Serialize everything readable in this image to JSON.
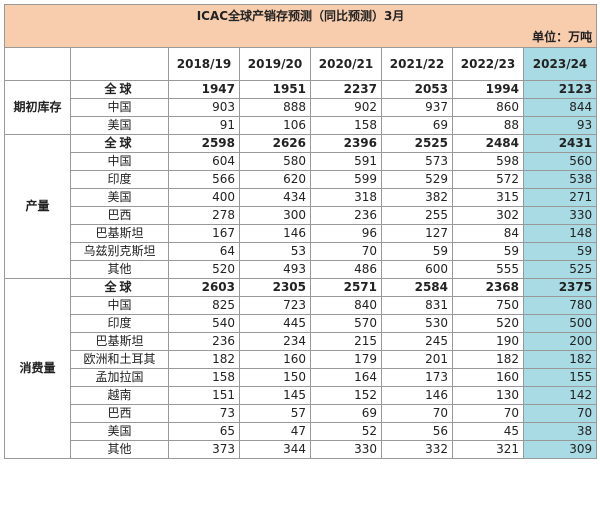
{
  "title": "ICAC全球产销存预测（同比预测）3月",
  "unit": "单位：万吨",
  "years": [
    "2018/19",
    "2019/20",
    "2020/21",
    "2021/22",
    "2022/23",
    "2023/24"
  ],
  "groups": [
    {
      "label": "期初库存",
      "rows": [
        {
          "name": "全球",
          "total": true,
          "values": [
            "1947",
            "1951",
            "2237",
            "2053",
            "1994",
            "2123"
          ]
        },
        {
          "name": "中国",
          "total": false,
          "values": [
            "903",
            "888",
            "902",
            "937",
            "860",
            "844"
          ]
        },
        {
          "name": "美国",
          "total": false,
          "values": [
            "91",
            "106",
            "158",
            "69",
            "88",
            "93"
          ]
        }
      ]
    },
    {
      "label": "产量",
      "rows": [
        {
          "name": "全球",
          "total": true,
          "values": [
            "2598",
            "2626",
            "2396",
            "2525",
            "2484",
            "2431"
          ]
        },
        {
          "name": "中国",
          "total": false,
          "values": [
            "604",
            "580",
            "591",
            "573",
            "598",
            "560"
          ]
        },
        {
          "name": "印度",
          "total": false,
          "values": [
            "566",
            "620",
            "599",
            "529",
            "572",
            "538"
          ]
        },
        {
          "name": "美国",
          "total": false,
          "values": [
            "400",
            "434",
            "318",
            "382",
            "315",
            "271"
          ]
        },
        {
          "name": "巴西",
          "total": false,
          "values": [
            "278",
            "300",
            "236",
            "255",
            "302",
            "330"
          ]
        },
        {
          "name": "巴基斯坦",
          "total": false,
          "values": [
            "167",
            "146",
            "96",
            "127",
            "84",
            "148"
          ]
        },
        {
          "name": "乌兹别克斯坦",
          "total": false,
          "values": [
            "64",
            "53",
            "70",
            "59",
            "59",
            "59"
          ]
        },
        {
          "name": "其他",
          "total": false,
          "values": [
            "520",
            "493",
            "486",
            "600",
            "555",
            "525"
          ]
        }
      ]
    },
    {
      "label": "消费量",
      "rows": [
        {
          "name": "全球",
          "total": true,
          "values": [
            "2603",
            "2305",
            "2571",
            "2584",
            "2368",
            "2375"
          ]
        },
        {
          "name": "中国",
          "total": false,
          "values": [
            "825",
            "723",
            "840",
            "831",
            "750",
            "780"
          ]
        },
        {
          "name": "印度",
          "total": false,
          "values": [
            "540",
            "445",
            "570",
            "530",
            "520",
            "500"
          ]
        },
        {
          "name": "巴基斯坦",
          "total": false,
          "values": [
            "236",
            "234",
            "215",
            "245",
            "190",
            "200"
          ]
        },
        {
          "name": "欧洲和土耳其",
          "total": false,
          "values": [
            "182",
            "160",
            "179",
            "201",
            "182",
            "182"
          ]
        },
        {
          "name": "孟加拉国",
          "total": false,
          "values": [
            "158",
            "150",
            "164",
            "173",
            "160",
            "155"
          ]
        },
        {
          "name": "越南",
          "total": false,
          "values": [
            "151",
            "145",
            "152",
            "146",
            "130",
            "142"
          ]
        },
        {
          "name": "巴西",
          "total": false,
          "values": [
            "73",
            "57",
            "69",
            "70",
            "70",
            "70"
          ]
        },
        {
          "name": "美国",
          "total": false,
          "values": [
            "65",
            "47",
            "52",
            "56",
            "45",
            "38"
          ]
        },
        {
          "name": "其他",
          "total": false,
          "values": [
            "373",
            "344",
            "330",
            "332",
            "321",
            "309"
          ]
        }
      ]
    }
  ]
}
